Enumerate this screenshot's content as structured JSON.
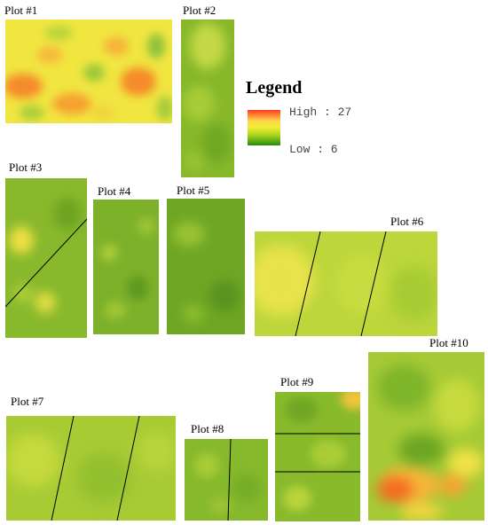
{
  "legend": {
    "title": "Legend",
    "high_label": "High : 27",
    "low_label": "Low : 6",
    "high_color": "#ff3b1e",
    "mid_color": "#f2ef35",
    "low_color": "#248a10"
  },
  "plots": [
    {
      "label": "Plot #1"
    },
    {
      "label": "Plot #2"
    },
    {
      "label": "Plot #3"
    },
    {
      "label": "Plot #4"
    },
    {
      "label": "Plot #5"
    },
    {
      "label": "Plot #6"
    },
    {
      "label": "Plot #7"
    },
    {
      "label": "Plot #8"
    },
    {
      "label": "Plot #9"
    },
    {
      "label": "Plot #10"
    }
  ]
}
